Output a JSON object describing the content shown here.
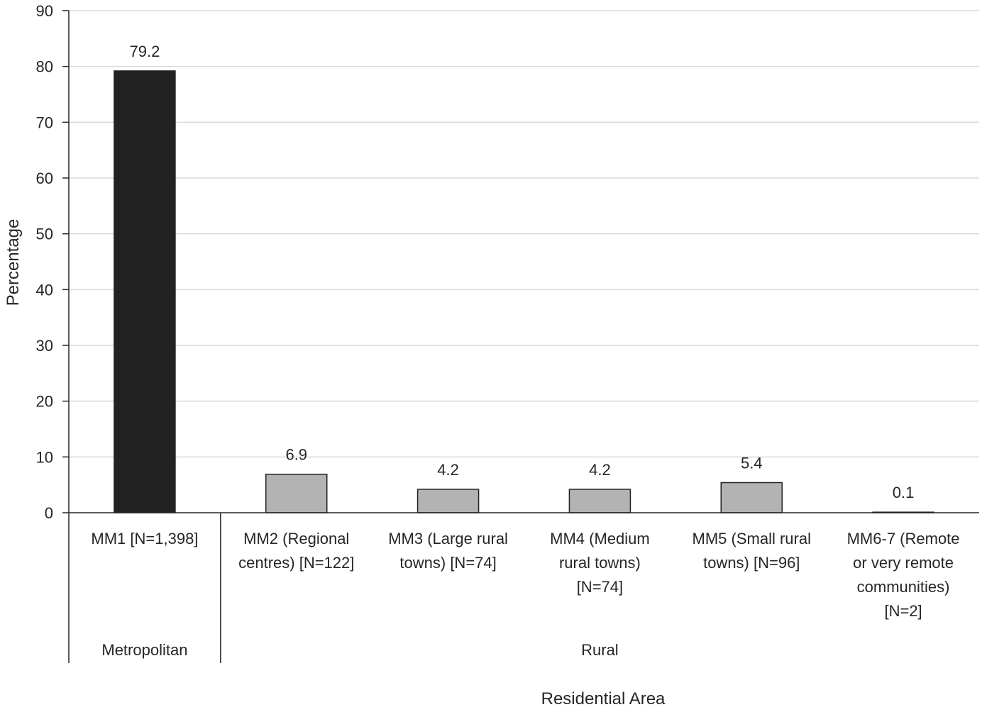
{
  "chart_data": {
    "type": "bar",
    "ylabel": "Percentage",
    "xlabel": "Residential Area",
    "ylim": [
      0,
      90
    ],
    "yticks": [
      0,
      10,
      20,
      30,
      40,
      50,
      60,
      70,
      80,
      90
    ],
    "grid": true,
    "categories": [
      [
        "MM1 [N=1,398]"
      ],
      [
        "MM2 (Regional",
        "centres) [N=122]"
      ],
      [
        "MM3 (Large rural",
        "towns) [N=74]"
      ],
      [
        "MM4 (Medium",
        "rural towns)",
        "[N=74]"
      ],
      [
        "MM5 (Small rural",
        "towns) [N=96]"
      ],
      [
        "MM6-7 (Remote",
        "or very remote",
        "communities)",
        "[N=2]"
      ]
    ],
    "values": [
      79.2,
      6.9,
      4.2,
      4.2,
      5.4,
      0.1
    ],
    "data_labels": [
      "79.2",
      "6.9",
      "4.2",
      "4.2",
      "5.4",
      "0.1"
    ],
    "groups": [
      {
        "label": "Metropolitan",
        "start": 0,
        "end": 0
      },
      {
        "label": "Rural",
        "start": 1,
        "end": 5
      }
    ],
    "colors": [
      "#222222",
      "#b3b3b3",
      "#b3b3b3",
      "#b3b3b3",
      "#b3b3b3",
      "#b3b3b3"
    ],
    "bar_edge_color": "#222222",
    "grid_color": "#d9d9d9",
    "axis_color": "#262626"
  }
}
